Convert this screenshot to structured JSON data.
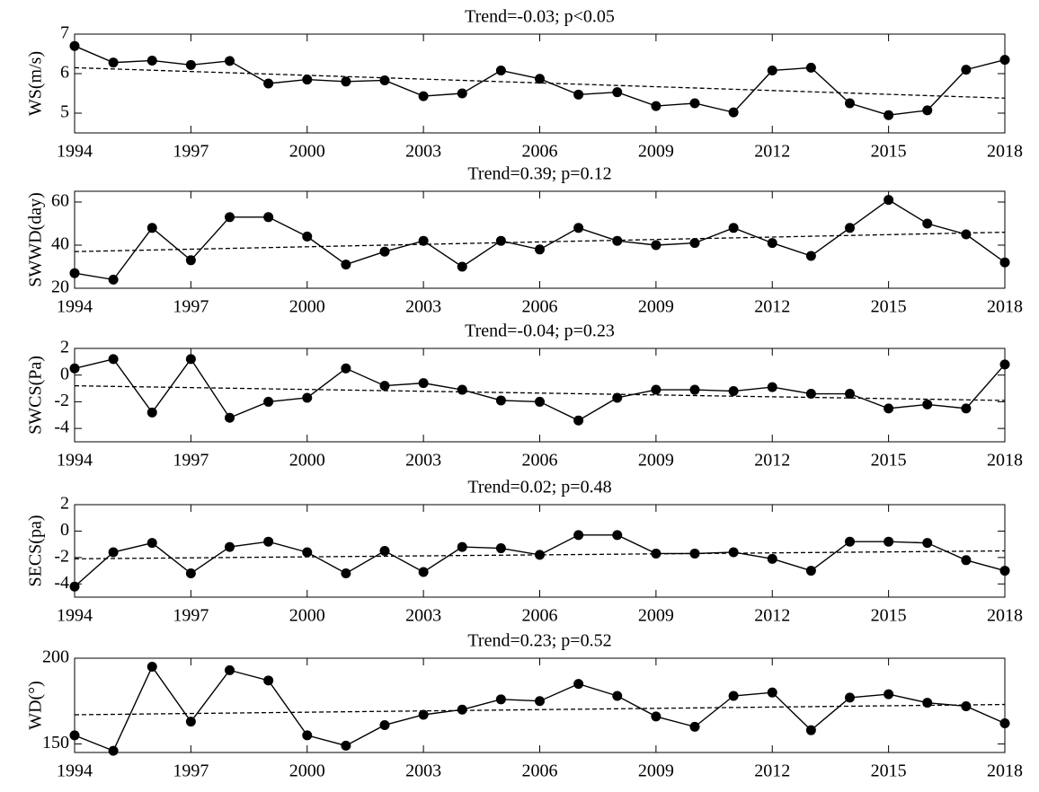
{
  "chart_data": [
    {
      "type": "line",
      "title": "Trend=-0.03; p<0.05",
      "ylabel": "WS(m/s)",
      "color": "#000000",
      "x": [
        1994,
        1995,
        1996,
        1997,
        1998,
        1999,
        2000,
        2001,
        2002,
        2003,
        2004,
        2005,
        2006,
        2007,
        2008,
        2009,
        2010,
        2011,
        2012,
        2013,
        2014,
        2015,
        2016,
        2017,
        2018
      ],
      "values": [
        6.7,
        6.28,
        6.33,
        6.22,
        6.32,
        5.75,
        5.85,
        5.8,
        5.83,
        5.43,
        5.5,
        6.08,
        5.87,
        5.47,
        5.53,
        5.18,
        5.25,
        5.02,
        6.08,
        6.15,
        5.25,
        4.95,
        5.07,
        6.1,
        6.35
      ],
      "trend_line": {
        "x": [
          1994,
          2018
        ],
        "values": [
          6.15,
          5.38
        ]
      },
      "xlim": [
        1994,
        2018
      ],
      "xticks": [
        1994,
        1997,
        2000,
        2003,
        2006,
        2009,
        2012,
        2015,
        2018
      ],
      "ylim": [
        4.5,
        7
      ],
      "yticks": [
        5,
        6,
        7
      ]
    },
    {
      "type": "line",
      "title": "Trend=0.39; p=0.12",
      "ylabel": "SWWD(day)",
      "color": "#000000",
      "x": [
        1994,
        1995,
        1996,
        1997,
        1998,
        1999,
        2000,
        2001,
        2002,
        2003,
        2004,
        2005,
        2006,
        2007,
        2008,
        2009,
        2010,
        2011,
        2012,
        2013,
        2014,
        2015,
        2016,
        2017,
        2018
      ],
      "values": [
        27,
        24,
        48,
        33,
        53,
        53,
        44,
        31,
        37,
        42,
        30,
        42,
        38,
        48,
        42,
        40,
        41,
        48,
        41,
        35,
        48,
        61,
        50,
        45,
        32
      ],
      "trend_line": {
        "x": [
          1994,
          2018
        ],
        "values": [
          37,
          46
        ]
      },
      "xlim": [
        1994,
        2018
      ],
      "xticks": [
        1994,
        1997,
        2000,
        2003,
        2006,
        2009,
        2012,
        2015,
        2018
      ],
      "ylim": [
        20,
        65
      ],
      "yticks": [
        20,
        40,
        60
      ]
    },
    {
      "type": "line",
      "title": "Trend=-0.04; p=0.23",
      "ylabel": "SWCS(Pa)",
      "color": "#000000",
      "x": [
        1994,
        1995,
        1996,
        1997,
        1998,
        1999,
        2000,
        2001,
        2002,
        2003,
        2004,
        2005,
        2006,
        2007,
        2008,
        2009,
        2010,
        2011,
        2012,
        2013,
        2014,
        2015,
        2016,
        2017,
        2018
      ],
      "values": [
        0.5,
        1.2,
        -2.8,
        1.2,
        -3.2,
        -2.0,
        -1.7,
        0.5,
        -0.8,
        -0.6,
        -1.1,
        -1.9,
        -2.0,
        -3.4,
        -1.7,
        -1.1,
        -1.1,
        -1.2,
        -0.9,
        -1.4,
        -1.4,
        -2.5,
        -2.2,
        -2.5,
        0.8
      ],
      "trend_line": {
        "x": [
          1994,
          2018
        ],
        "values": [
          -0.8,
          -1.9
        ]
      },
      "xlim": [
        1994,
        2018
      ],
      "xticks": [
        1994,
        1997,
        2000,
        2003,
        2006,
        2009,
        2012,
        2015,
        2018
      ],
      "ylim": [
        -5,
        2
      ],
      "yticks": [
        -4,
        -2,
        0,
        2
      ]
    },
    {
      "type": "line",
      "title": "Trend=0.02; p=0.48",
      "ylabel": "SECS(pa)",
      "color": "#000000",
      "x": [
        1994,
        1995,
        1996,
        1997,
        1998,
        1999,
        2000,
        2001,
        2002,
        2003,
        2004,
        2005,
        2006,
        2007,
        2008,
        2009,
        2010,
        2011,
        2012,
        2013,
        2014,
        2015,
        2016,
        2017,
        2018
      ],
      "values": [
        -4.2,
        -1.6,
        -0.9,
        -3.2,
        -1.2,
        -0.8,
        -1.6,
        -3.2,
        -1.5,
        -3.1,
        -1.2,
        -1.3,
        -1.8,
        -0.3,
        -0.3,
        -1.7,
        -1.7,
        -1.6,
        -2.1,
        -3.0,
        -0.8,
        -0.8,
        -0.9,
        -2.2,
        -3.0
      ],
      "trend_line": {
        "x": [
          1994,
          2018
        ],
        "values": [
          -2.1,
          -1.5
        ]
      },
      "xlim": [
        1994,
        2018
      ],
      "xticks": [
        1994,
        1997,
        2000,
        2003,
        2006,
        2009,
        2012,
        2015,
        2018
      ],
      "ylim": [
        -5,
        2
      ],
      "yticks": [
        -4,
        -2,
        0,
        2
      ]
    },
    {
      "type": "line",
      "title": "Trend=0.23; p=0.52",
      "ylabel": "WD(°)",
      "color": "#000000",
      "x": [
        1994,
        1995,
        1996,
        1997,
        1998,
        1999,
        2000,
        2001,
        2002,
        2003,
        2004,
        2005,
        2006,
        2007,
        2008,
        2009,
        2010,
        2011,
        2012,
        2013,
        2014,
        2015,
        2016,
        2017,
        2018
      ],
      "values": [
        155,
        146,
        195,
        163,
        193,
        187,
        155,
        149,
        161,
        167,
        170,
        176,
        175,
        185,
        178,
        166,
        160,
        178,
        180,
        158,
        177,
        179,
        174,
        172,
        162
      ],
      "trend_line": {
        "x": [
          1994,
          2018
        ],
        "values": [
          167,
          173
        ]
      },
      "xlim": [
        1994,
        2018
      ],
      "xticks": [
        1994,
        1997,
        2000,
        2003,
        2006,
        2009,
        2012,
        2015,
        2018
      ],
      "ylim": [
        145,
        200
      ],
      "yticks": [
        150,
        200
      ]
    }
  ]
}
